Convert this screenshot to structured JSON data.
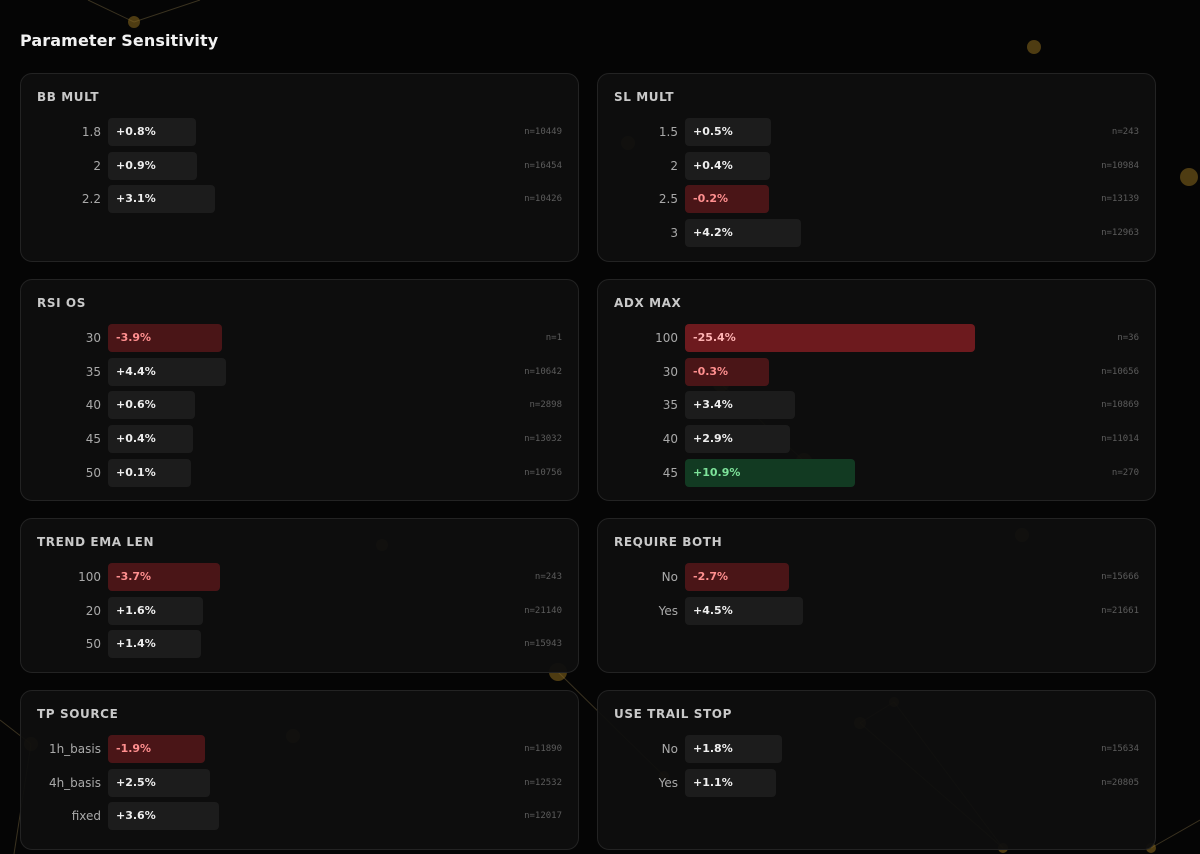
{
  "page": {
    "title": "Parameter Sensitivity"
  },
  "colors": {
    "background": "#050505",
    "card": "#0e0e0e",
    "neutral_bar": "#1c1c1c",
    "negative_bar": "#4a1517",
    "strong_negative_bar": "#6d1a1e",
    "positive_bar": "#123a22",
    "negative_text": "#ff8f8f",
    "positive_text": "#7de39a",
    "particle": "#8a6a1e"
  },
  "cards": [
    {
      "title": "BB MULT",
      "rows": [
        {
          "label": "1.8",
          "value": "+0.8%",
          "n": "n=10449",
          "tone": "neutral",
          "pct": 0.8
        },
        {
          "label": "2",
          "value": "+0.9%",
          "n": "n=16454",
          "tone": "neutral",
          "pct": 0.9
        },
        {
          "label": "2.2",
          "value": "+3.1%",
          "n": "n=10426",
          "tone": "neutral",
          "pct": 3.1
        }
      ]
    },
    {
      "title": "SL MULT",
      "rows": [
        {
          "label": "1.5",
          "value": "+0.5%",
          "n": "n=243",
          "tone": "neutral",
          "pct": 0.5
        },
        {
          "label": "2",
          "value": "+0.4%",
          "n": "n=10984",
          "tone": "neutral",
          "pct": 0.4
        },
        {
          "label": "2.5",
          "value": "-0.2%",
          "n": "n=13139",
          "tone": "neg",
          "pct": -0.2
        },
        {
          "label": "3",
          "value": "+4.2%",
          "n": "n=12963",
          "tone": "neutral",
          "pct": 4.2
        }
      ]
    },
    {
      "title": "RSI OS",
      "rows": [
        {
          "label": "30",
          "value": "-3.9%",
          "n": "n=1",
          "tone": "neg",
          "pct": -3.9
        },
        {
          "label": "35",
          "value": "+4.4%",
          "n": "n=10642",
          "tone": "neutral",
          "pct": 4.4
        },
        {
          "label": "40",
          "value": "+0.6%",
          "n": "n=2898",
          "tone": "neutral",
          "pct": 0.6
        },
        {
          "label": "45",
          "value": "+0.4%",
          "n": "n=13032",
          "tone": "neutral",
          "pct": 0.4
        },
        {
          "label": "50",
          "value": "+0.1%",
          "n": "n=10756",
          "tone": "neutral",
          "pct": 0.1
        }
      ]
    },
    {
      "title": "ADX MAX",
      "rows": [
        {
          "label": "100",
          "value": "-25.4%",
          "n": "n=36",
          "tone": "neg-strong",
          "pct": -25.4
        },
        {
          "label": "30",
          "value": "-0.3%",
          "n": "n=10656",
          "tone": "neg",
          "pct": -0.3
        },
        {
          "label": "35",
          "value": "+3.4%",
          "n": "n=10869",
          "tone": "neutral",
          "pct": 3.4
        },
        {
          "label": "40",
          "value": "+2.9%",
          "n": "n=11014",
          "tone": "neutral",
          "pct": 2.9
        },
        {
          "label": "45",
          "value": "+10.9%",
          "n": "n=270",
          "tone": "pos",
          "pct": 10.9
        }
      ]
    },
    {
      "title": "TREND EMA LEN",
      "rows": [
        {
          "label": "100",
          "value": "-3.7%",
          "n": "n=243",
          "tone": "neg",
          "pct": -3.7
        },
        {
          "label": "20",
          "value": "+1.6%",
          "n": "n=21140",
          "tone": "neutral",
          "pct": 1.6
        },
        {
          "label": "50",
          "value": "+1.4%",
          "n": "n=15943",
          "tone": "neutral",
          "pct": 1.4
        }
      ]
    },
    {
      "title": "REQUIRE BOTH",
      "rows": [
        {
          "label": "No",
          "value": "-2.7%",
          "n": "n=15666",
          "tone": "neg",
          "pct": -2.7
        },
        {
          "label": "Yes",
          "value": "+4.5%",
          "n": "n=21661",
          "tone": "neutral",
          "pct": 4.5
        }
      ]
    },
    {
      "title": "TP SOURCE",
      "rows": [
        {
          "label": "1h_basis",
          "value": "-1.9%",
          "n": "n=11890",
          "tone": "neg",
          "pct": -1.9
        },
        {
          "label": "4h_basis",
          "value": "+2.5%",
          "n": "n=12532",
          "tone": "neutral",
          "pct": 2.5
        },
        {
          "label": "fixed",
          "value": "+3.6%",
          "n": "n=12017",
          "tone": "neutral",
          "pct": 3.6
        }
      ]
    },
    {
      "title": "USE TRAIL STOP",
      "rows": [
        {
          "label": "No",
          "value": "+1.8%",
          "n": "n=15634",
          "tone": "neutral",
          "pct": 1.8
        },
        {
          "label": "Yes",
          "value": "+1.1%",
          "n": "n=20805",
          "tone": "neutral",
          "pct": 1.1
        }
      ]
    }
  ]
}
